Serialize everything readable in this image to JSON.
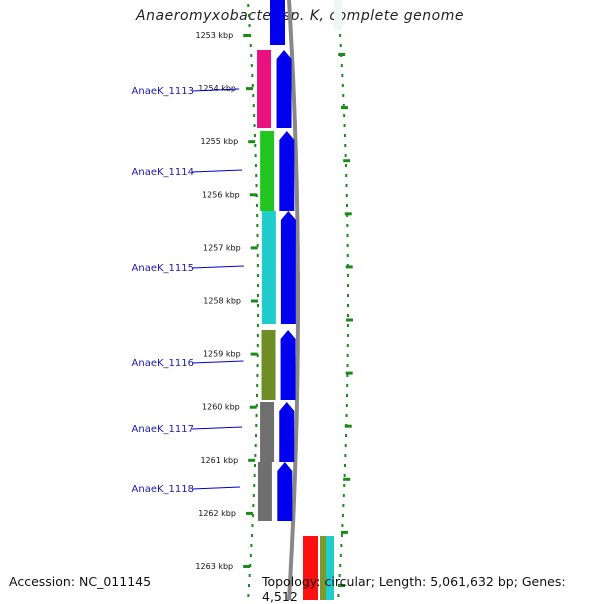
{
  "title": "Anaeromyxobacter sp. K, complete genome",
  "footer": {
    "accession": "Accession: NC_011145",
    "topology": "Topology: circular; Length: 5,061,632 bp; Genes: 4,512"
  },
  "ruler": {
    "unit": "kbp",
    "ticks": [
      "1253 kbp",
      "1254 kbp",
      "1255 kbp",
      "1256 kbp",
      "1257 kbp",
      "1258 kbp",
      "1259 kbp",
      "1260 kbp",
      "1261 kbp",
      "1262 kbp",
      "1263 kbp"
    ]
  },
  "genes": [
    {
      "name": "AnaeK_1113",
      "color": "#e8117f"
    },
    {
      "name": "AnaeK_1114",
      "color": "#22c41f"
    },
    {
      "name": "AnaeK_1115",
      "color": "#20cccc"
    },
    {
      "name": "AnaeK_1116",
      "color": "#6e8d25"
    },
    {
      "name": "AnaeK_1117",
      "color": "#6f6f6f"
    },
    {
      "name": "AnaeK_1118",
      "color": "#6f6f6f"
    }
  ],
  "colors": {
    "forward_strand": "#0000ee",
    "gc_line": "#888888",
    "ruler_dots": "#1b8a1b",
    "label_line": "#0000cc"
  }
}
